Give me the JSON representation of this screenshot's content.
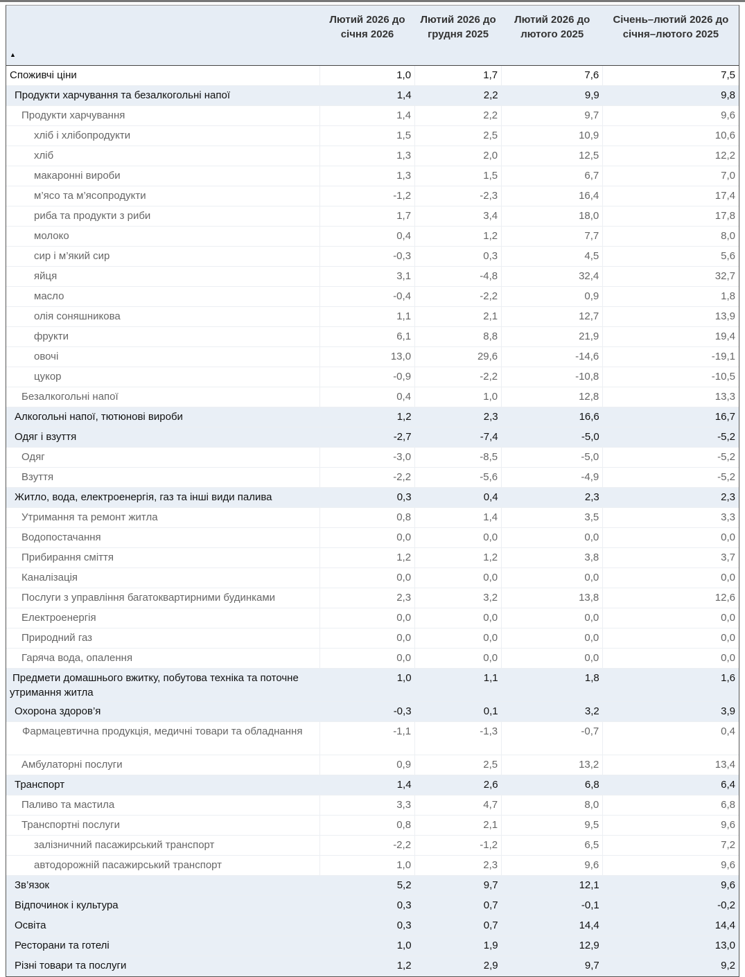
{
  "table": {
    "headers": [
      "Лютий 2026 до січня 2026",
      "Лютий 2026 до грудня 2025",
      "Лютий 2026 до лютого 2025",
      "Січень–лютий 2026 до січня–лютого 2025"
    ],
    "sort_indicator": "▲",
    "rows": [
      {
        "label": "Споживчі ціни",
        "level": 0,
        "values": [
          "1,0",
          "1,7",
          "7,6",
          "7,5"
        ]
      },
      {
        "label": "Продукти харчування та безалкогольні напої",
        "level": 1,
        "values": [
          "1,4",
          "2,2",
          "9,9",
          "9,8"
        ]
      },
      {
        "label": "Продукти харчування",
        "level": 2,
        "values": [
          "1,4",
          "2,2",
          "9,7",
          "9,6"
        ]
      },
      {
        "label": "хліб і хлібопродукти",
        "level": 3,
        "values": [
          "1,5",
          "2,5",
          "10,9",
          "10,6"
        ]
      },
      {
        "label": "хліб",
        "level": 3,
        "values": [
          "1,3",
          "2,0",
          "12,5",
          "12,2"
        ]
      },
      {
        "label": "макаронні вироби",
        "level": 3,
        "values": [
          "1,3",
          "1,5",
          "6,7",
          "7,0"
        ]
      },
      {
        "label": "м’ясо та м’ясопродукти",
        "level": 3,
        "values": [
          "-1,2",
          "-2,3",
          "16,4",
          "17,4"
        ]
      },
      {
        "label": "риба та продукти з риби",
        "level": 3,
        "values": [
          "1,7",
          "3,4",
          "18,0",
          "17,8"
        ]
      },
      {
        "label": "молоко",
        "level": 3,
        "values": [
          "0,4",
          "1,2",
          "7,7",
          "8,0"
        ]
      },
      {
        "label": "сир і м’який сир",
        "level": 3,
        "values": [
          "-0,3",
          "0,3",
          "4,5",
          "5,6"
        ]
      },
      {
        "label": "яйця",
        "level": 3,
        "values": [
          "3,1",
          "-4,8",
          "32,4",
          "32,7"
        ]
      },
      {
        "label": "масло",
        "level": 3,
        "values": [
          "-0,4",
          "-2,2",
          "0,9",
          "1,8"
        ]
      },
      {
        "label": "олія соняшникова",
        "level": 3,
        "values": [
          "1,1",
          "2,1",
          "12,7",
          "13,9"
        ]
      },
      {
        "label": "фрукти",
        "level": 3,
        "values": [
          "6,1",
          "8,8",
          "21,9",
          "19,4"
        ]
      },
      {
        "label": "овочі",
        "level": 3,
        "values": [
          "13,0",
          "29,6",
          "-14,6",
          "-19,1"
        ]
      },
      {
        "label": "цукор",
        "level": 3,
        "values": [
          "-0,9",
          "-2,2",
          "-10,8",
          "-10,5"
        ]
      },
      {
        "label": "Безалкогольні напої",
        "level": 2,
        "values": [
          "0,4",
          "1,0",
          "12,8",
          "13,3"
        ]
      },
      {
        "label": "Алкогольні напої, тютюнові вироби",
        "level": 1,
        "values": [
          "1,2",
          "2,3",
          "16,6",
          "16,7"
        ]
      },
      {
        "label": "Одяг і взуття",
        "level": 1,
        "values": [
          "-2,7",
          "-7,4",
          "-5,0",
          "-5,2"
        ]
      },
      {
        "label": "Одяг",
        "level": 2,
        "values": [
          "-3,0",
          "-8,5",
          "-5,0",
          "-5,2"
        ]
      },
      {
        "label": "Взуття",
        "level": 2,
        "values": [
          "-2,2",
          "-5,6",
          "-4,9",
          "-5,2"
        ]
      },
      {
        "label": "Житло, вода, електроенергія, газ та інші види палива",
        "level": 1,
        "values": [
          "0,3",
          "0,4",
          "2,3",
          "2,3"
        ]
      },
      {
        "label": "Утримання та ремонт житла",
        "level": 2,
        "values": [
          "0,8",
          "1,4",
          "3,5",
          "3,3"
        ]
      },
      {
        "label": "Водопостачання",
        "level": 2,
        "values": [
          "0,0",
          "0,0",
          "0,0",
          "0,0"
        ]
      },
      {
        "label": "Прибирання сміття",
        "level": 2,
        "values": [
          "1,2",
          "1,2",
          "3,8",
          "3,7"
        ]
      },
      {
        "label": "Каналізація",
        "level": 2,
        "values": [
          "0,0",
          "0,0",
          "0,0",
          "0,0"
        ]
      },
      {
        "label": "Послуги з управління багатоквартирними будинками",
        "level": 2,
        "values": [
          "2,3",
          "3,2",
          "13,8",
          "12,6"
        ]
      },
      {
        "label": "Електроенергія",
        "level": 2,
        "values": [
          "0,0",
          "0,0",
          "0,0",
          "0,0"
        ]
      },
      {
        "label": "Природний газ",
        "level": 2,
        "values": [
          "0,0",
          "0,0",
          "0,0",
          "0,0"
        ]
      },
      {
        "label": "Гаряча вода, опалення",
        "level": 2,
        "values": [
          "0,0",
          "0,0",
          "0,0",
          "0,0"
        ]
      },
      {
        "label": "Предмети домашнього вжитку, побутова техніка та поточне утримання житла",
        "level": 1,
        "values": [
          "1,0",
          "1,1",
          "1,8",
          "1,6"
        ]
      },
      {
        "label": "Охорона здоров’я",
        "level": 1,
        "values": [
          "-0,3",
          "0,1",
          "3,2",
          "3,9"
        ]
      },
      {
        "label": "Фармацевтична продукція, медичні товари та обладнання",
        "level": 2,
        "values": [
          "-1,1",
          "-1,3",
          "-0,7",
          "0,4"
        ]
      },
      {
        "label": "Амбулаторні послуги",
        "level": 2,
        "values": [
          "0,9",
          "2,5",
          "13,2",
          "13,4"
        ]
      },
      {
        "label": "Транспорт",
        "level": 1,
        "values": [
          "1,4",
          "2,6",
          "6,8",
          "6,4"
        ]
      },
      {
        "label": "Паливо та мастила",
        "level": 2,
        "values": [
          "3,3",
          "4,7",
          "8,0",
          "6,8"
        ]
      },
      {
        "label": "Транспортні послуги",
        "level": 2,
        "values": [
          "0,8",
          "2,1",
          "9,5",
          "9,6"
        ]
      },
      {
        "label": "залізничний пасажирський транспорт",
        "level": 3,
        "values": [
          "-2,2",
          "-1,2",
          "6,5",
          "7,2"
        ]
      },
      {
        "label": "автодорожній пасажирський транспорт",
        "level": 3,
        "values": [
          "1,0",
          "2,3",
          "9,6",
          "9,6"
        ]
      },
      {
        "label": "Зв’язок",
        "level": 1,
        "values": [
          "5,2",
          "9,7",
          "12,1",
          "9,6"
        ]
      },
      {
        "label": "Відпочинок і культура",
        "level": 1,
        "values": [
          "0,3",
          "0,7",
          "-0,1",
          "-0,2"
        ]
      },
      {
        "label": "Освіта",
        "level": 1,
        "values": [
          "0,3",
          "0,7",
          "14,4",
          "14,4"
        ]
      },
      {
        "label": "Ресторани та готелі",
        "level": 1,
        "values": [
          "1,0",
          "1,9",
          "12,9",
          "13,0"
        ]
      },
      {
        "label": "Різні товари та послуги",
        "level": 1,
        "values": [
          "1,2",
          "2,9",
          "9,7",
          "9,2"
        ]
      }
    ]
  }
}
